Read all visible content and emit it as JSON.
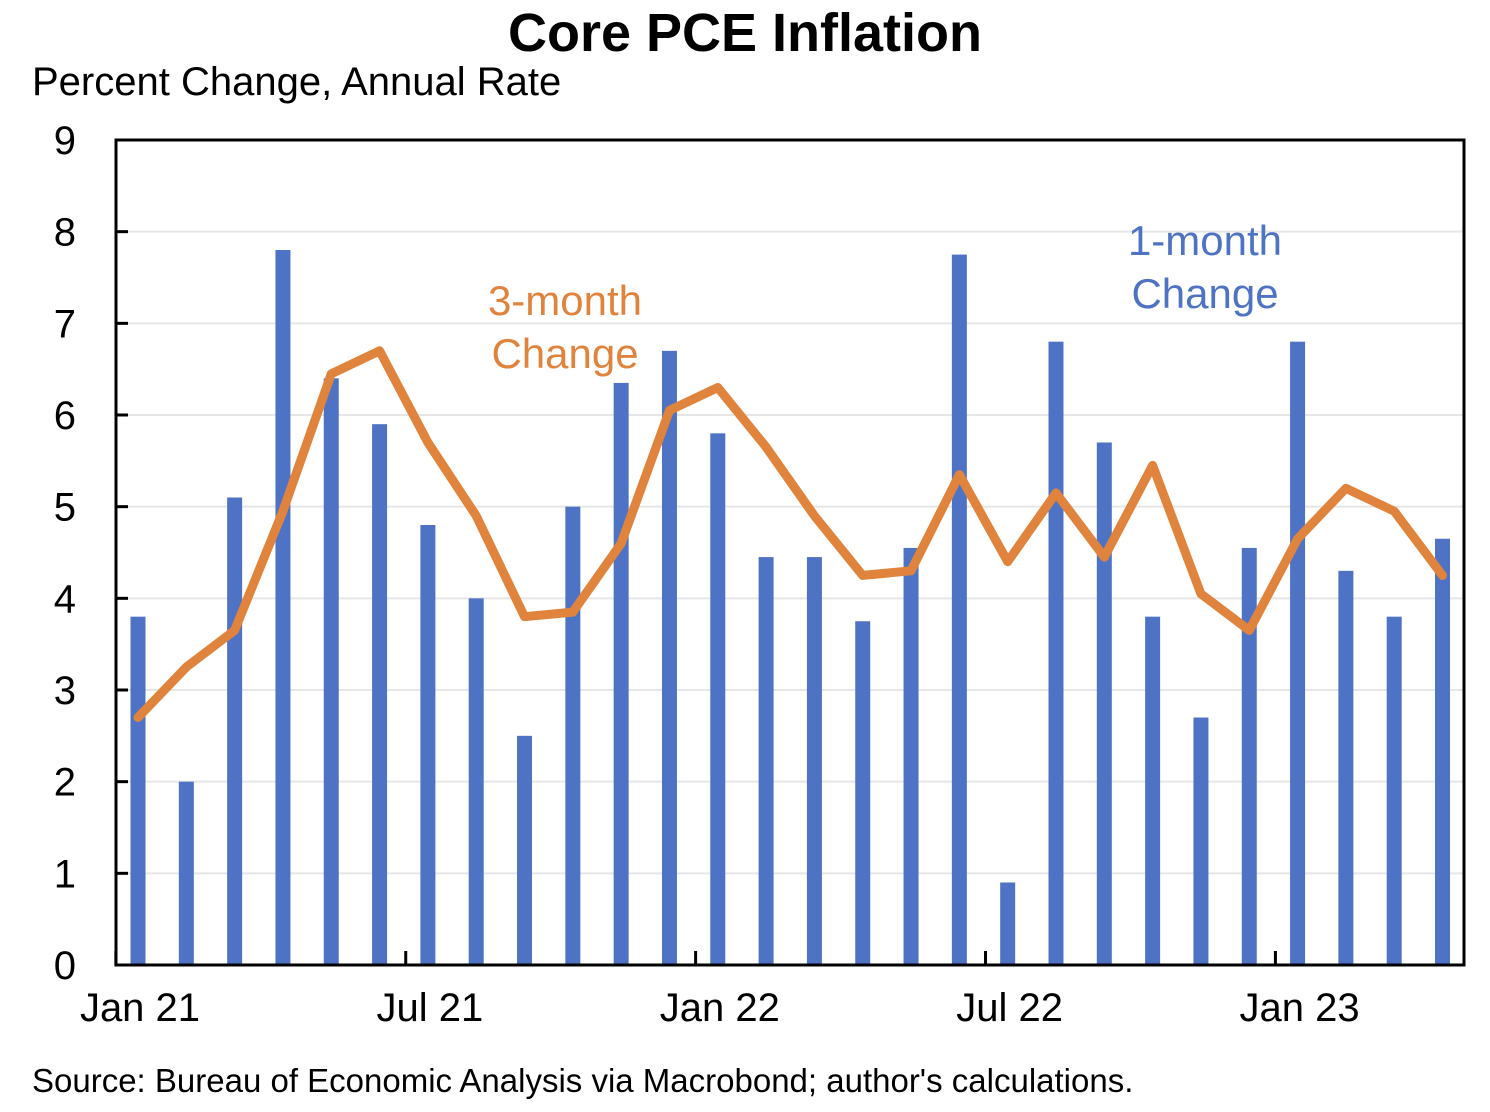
{
  "title": "Core PCE Inflation",
  "subtitle": "Percent Change, Annual Rate",
  "source": "Source: Bureau of Economic Analysis via Macrobond; author's calculations.",
  "colors": {
    "bars": "#4f73c4",
    "line": "#e0843d",
    "axis": "#000000",
    "grid": "#e6e6e6"
  },
  "chart_data": {
    "type": "bar",
    "title": "Core PCE Inflation",
    "subtitle": "Percent Change, Annual Rate",
    "ylim": [
      0,
      9
    ],
    "yticks": [
      "0",
      "1",
      "2",
      "3",
      "4",
      "5",
      "6",
      "7",
      "8",
      "9"
    ],
    "xtick_labels": [
      {
        "label": "Jan 21",
        "month_index": 0
      },
      {
        "label": "Jul 21",
        "month_index": 6
      },
      {
        "label": "Jan 22",
        "month_index": 12
      },
      {
        "label": "Jul 22",
        "month_index": 18
      },
      {
        "label": "Jan 23",
        "month_index": 24
      }
    ],
    "grid": true,
    "categories": [
      "2021-01",
      "2021-02",
      "2021-03",
      "2021-04",
      "2021-05",
      "2021-06",
      "2021-07",
      "2021-08",
      "2021-09",
      "2021-10",
      "2021-11",
      "2021-12",
      "2022-01",
      "2022-02",
      "2022-03",
      "2022-04",
      "2022-05",
      "2022-06",
      "2022-07",
      "2022-08",
      "2022-09",
      "2022-10",
      "2022-11",
      "2022-12",
      "2023-01",
      "2023-02",
      "2023-03",
      "2023-04"
    ],
    "series": [
      {
        "name": "1-month Change",
        "type": "bar",
        "values": [
          3.8,
          2.0,
          5.1,
          7.8,
          6.4,
          5.9,
          4.8,
          4.0,
          2.5,
          5.0,
          6.35,
          6.7,
          5.8,
          4.45,
          4.45,
          3.75,
          4.55,
          7.75,
          0.9,
          6.8,
          5.7,
          3.8,
          2.7,
          4.55,
          6.8,
          4.3,
          3.8,
          4.65
        ]
      },
      {
        "name": "3-month Change",
        "type": "line",
        "values": [
          2.7,
          3.25,
          3.65,
          4.95,
          6.45,
          6.7,
          5.7,
          4.9,
          3.8,
          3.85,
          4.6,
          6.05,
          6.3,
          5.65,
          4.9,
          4.25,
          4.3,
          5.35,
          4.4,
          5.15,
          4.45,
          5.45,
          4.05,
          3.65,
          4.65,
          5.2,
          4.95,
          4.25
        ]
      }
    ],
    "annotations": [
      {
        "text_lines": [
          "3-month",
          "Change"
        ],
        "series": "3-month Change"
      },
      {
        "text_lines": [
          "1-month",
          "Change"
        ],
        "series": "1-month Change"
      }
    ]
  }
}
